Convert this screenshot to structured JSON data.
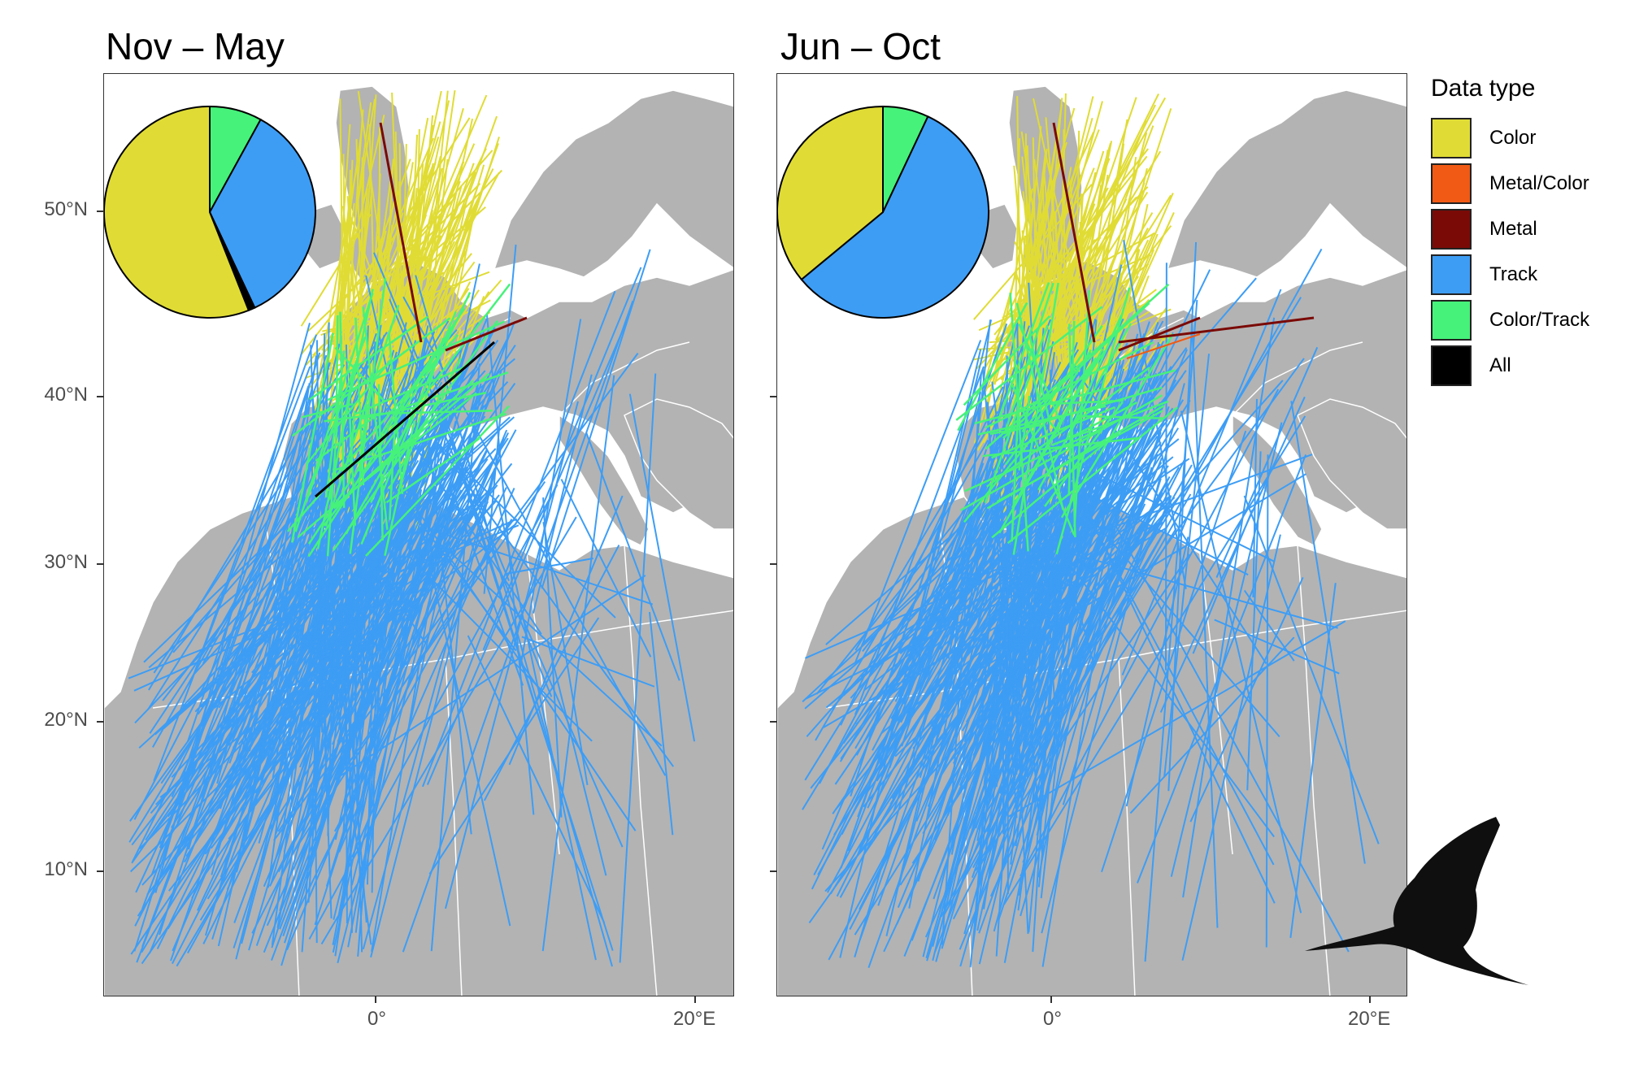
{
  "panels": [
    {
      "title": "Nov – May",
      "pie": [
        {
          "type": "Color/Track",
          "value": 8
        },
        {
          "type": "Track",
          "value": 35
        },
        {
          "type": "All",
          "value": 1
        },
        {
          "type": "Color",
          "value": 56
        }
      ]
    },
    {
      "title": "Jun – Oct",
      "pie": [
        {
          "type": "Color/Track",
          "value": 7
        },
        {
          "type": "Track",
          "value": 57
        },
        {
          "type": "Color",
          "value": 36
        }
      ]
    }
  ],
  "y_ticks": [
    "50°N",
    "40°N",
    "30°N",
    "20°N",
    "10°N"
  ],
  "x_ticks": [
    "0°",
    "20°E"
  ],
  "legend": {
    "title": "Data type",
    "items": [
      {
        "label": "Color",
        "color": "#e0dc35"
      },
      {
        "label": "Metal/Color",
        "color": "#f05a14"
      },
      {
        "label": "Metal",
        "color": "#7a0a06"
      },
      {
        "label": "Track",
        "color": "#3d9df5"
      },
      {
        "label": "Color/Track",
        "color": "#46f27a"
      },
      {
        "label": "All",
        "color": "#000000"
      }
    ]
  },
  "colors": {
    "land": "#b3b3b3",
    "sea": "#ffffff",
    "border": "#ffffff"
  },
  "icons": [
    "bird-silhouette-icon"
  ]
}
